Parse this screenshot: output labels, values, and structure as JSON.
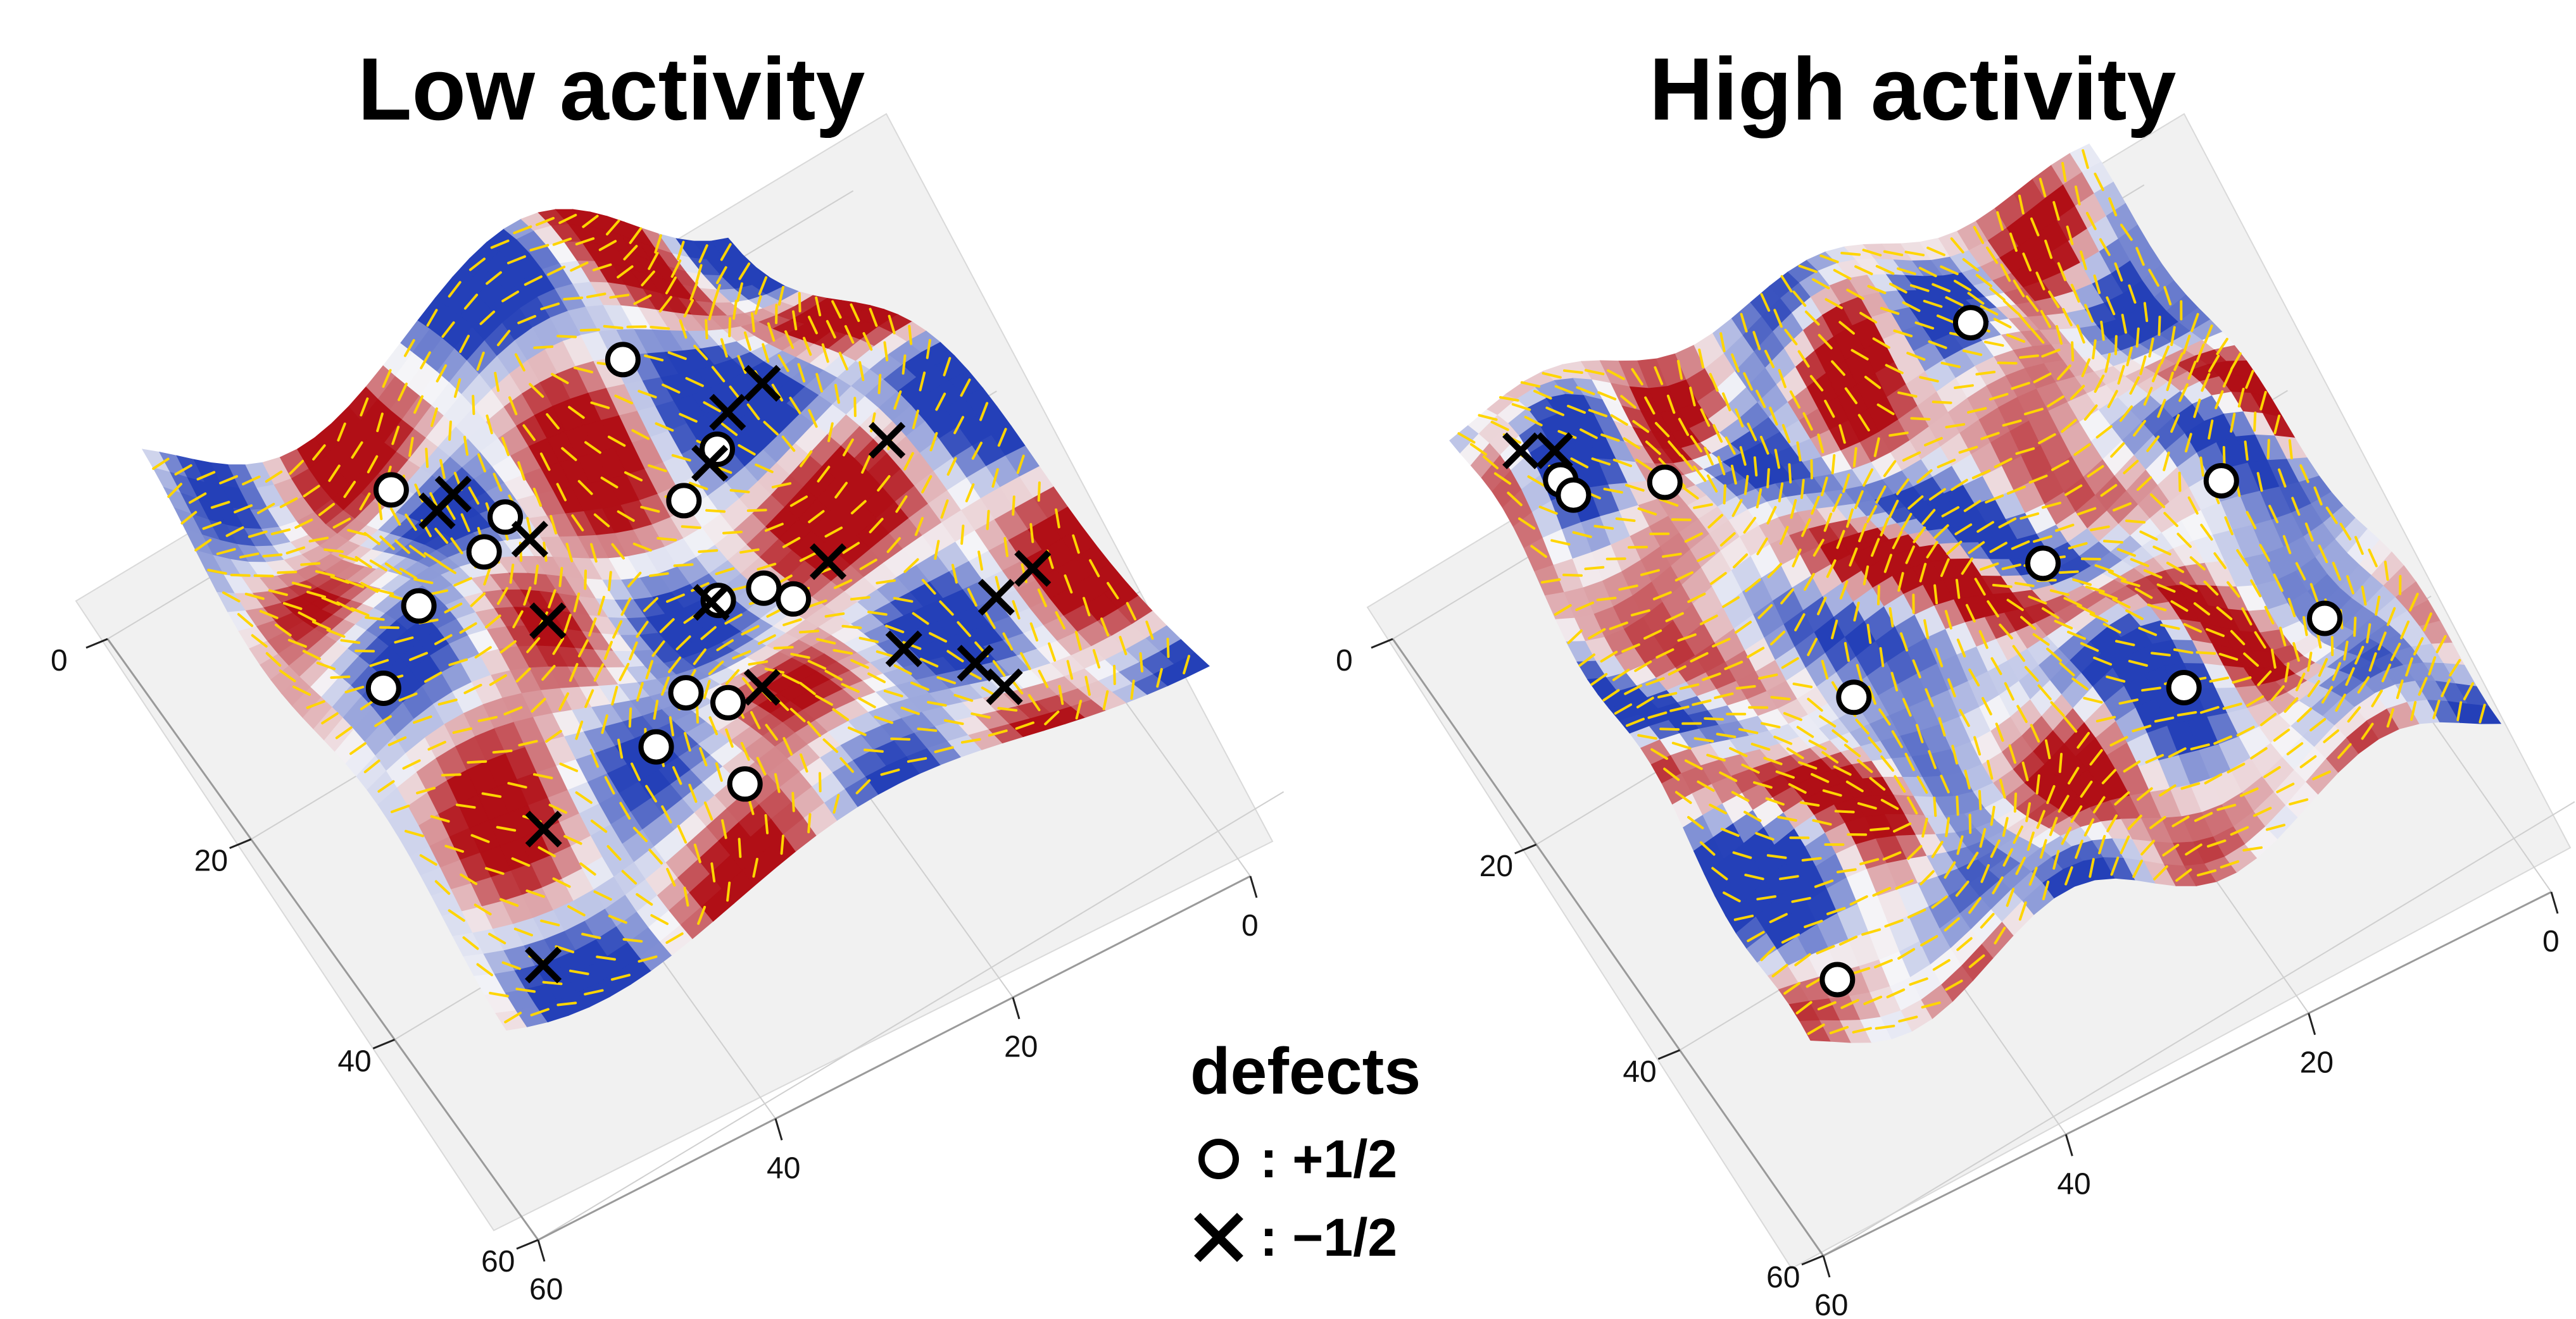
{
  "panels": [
    {
      "title": "Low activity",
      "regime": "low",
      "x_ticks": [
        "0",
        "20",
        "40",
        "60"
      ],
      "y_ticks": [
        "0",
        "20",
        "40",
        "60"
      ],
      "plus_half_defect_count": 15,
      "minus_half_defect_count": 18
    },
    {
      "title": "High activity",
      "regime": "high",
      "x_ticks": [
        "0",
        "20",
        "40",
        "60"
      ],
      "y_ticks": [
        "0",
        "20",
        "40",
        "60"
      ],
      "plus_half_defect_count": 10,
      "minus_half_defect_count": 2
    }
  ],
  "legend": {
    "title": "defects",
    "items": [
      {
        "symbol": "open-circle-icon",
        "label": ": +1/2"
      },
      {
        "symbol": "cross-icon",
        "label": ": −1/2"
      }
    ]
  },
  "colors": {
    "positive": "#b10f16",
    "negative": "#2440b8",
    "director": "#ffd500",
    "floor": "#f1f1f1"
  }
}
